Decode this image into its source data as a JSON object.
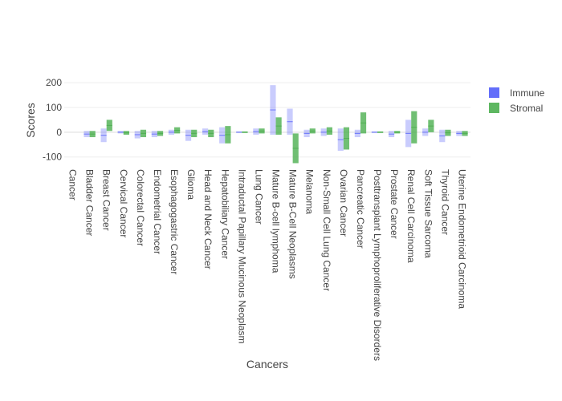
{
  "chart_data": {
    "type": "bar",
    "xlabel": "Cancers",
    "ylabel": "Scores",
    "ylim": [
      -130,
      210
    ],
    "yticks": [
      -100,
      0,
      100,
      200
    ],
    "grid": true,
    "legend_position": "top-right",
    "categories": [
      "Cancer",
      "Bladder Cancer",
      "Breast Cancer",
      "Cervical Cancer",
      "Colorectal Cancer",
      "Endometrial Cancer",
      "Esophagogastric Cancer",
      "Glioma",
      "Head and Neck Cancer",
      "Hepatobiliary Cancer",
      "Intraductal Papillary Mucinous Neoplasm",
      "Lung Cancer",
      "Mature B-cell lymphoma",
      "Mature B-Cell Neoplasms",
      "Melanoma",
      "Non-Small Cell Lung Cancer",
      "Ovarian Cancer",
      "Pancreatic Cancer",
      "Posttransplant Lymphoproliferative  Disorders",
      "Prostate Cancer",
      "Renal Cell Carcinoma",
      "Soft Tissue Sarcoma",
      "Thyroid Cancer",
      "Uterine Endometrioid Carcinoma"
    ],
    "series": [
      {
        "name": "Immune",
        "color": "#636efa",
        "opacity": 0.35,
        "ranges": [
          null,
          [
            -20,
            5
          ],
          [
            -40,
            15
          ],
          [
            -5,
            5
          ],
          [
            -25,
            5
          ],
          [
            -20,
            5
          ],
          [
            -10,
            10
          ],
          [
            -35,
            10
          ],
          [
            -10,
            15
          ],
          [
            -45,
            20
          ],
          [
            -3,
            3
          ],
          [
            -10,
            15
          ],
          [
            -10,
            190
          ],
          [
            -10,
            95
          ],
          [
            -20,
            10
          ],
          [
            -15,
            15
          ],
          [
            -75,
            15
          ],
          [
            -20,
            10
          ],
          [
            -3,
            3
          ],
          [
            -20,
            5
          ],
          [
            -60,
            50
          ],
          [
            -15,
            15
          ],
          [
            -40,
            10
          ],
          [
            -15,
            5
          ]
        ]
      },
      {
        "name": "Stromal",
        "color": "#4caf50",
        "opacity": 0.8,
        "ranges": [
          null,
          [
            -20,
            5
          ],
          [
            5,
            50
          ],
          [
            -10,
            5
          ],
          [
            -20,
            10
          ],
          [
            -15,
            5
          ],
          [
            -5,
            20
          ],
          [
            -20,
            10
          ],
          [
            -20,
            10
          ],
          [
            -45,
            25
          ],
          [
            -3,
            3
          ],
          [
            -5,
            15
          ],
          [
            -10,
            60
          ],
          [
            -125,
            -5
          ],
          [
            -5,
            15
          ],
          [
            -10,
            20
          ],
          [
            -70,
            20
          ],
          [
            -5,
            80
          ],
          [
            -3,
            3
          ],
          [
            -5,
            5
          ],
          [
            -45,
            85
          ],
          [
            0,
            50
          ],
          [
            -15,
            10
          ],
          [
            -15,
            5
          ]
        ]
      }
    ]
  }
}
